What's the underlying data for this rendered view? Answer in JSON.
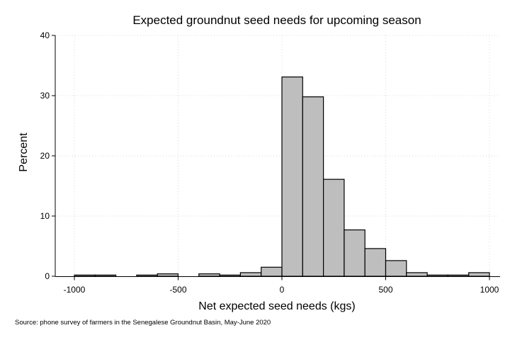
{
  "chart_data": {
    "type": "bar",
    "title": "Expected groundnut seed needs for upcoming season",
    "xlabel": "Net expected seed needs (kgs)",
    "ylabel": "Percent",
    "note": "Source: phone survey of farmers in the Senegalese Groundnut Basin, May-June 2020",
    "xlim": [
      -1000,
      1000
    ],
    "ylim": [
      0,
      40
    ],
    "xticks": [
      -1000,
      -500,
      0,
      500,
      1000
    ],
    "yticks": [
      0,
      10,
      20,
      30,
      40
    ],
    "grid": true,
    "bin_width": 100,
    "bins": [
      {
        "x0": -1000,
        "x1": -900,
        "value": 0.2
      },
      {
        "x0": -900,
        "x1": -800,
        "value": 0.2
      },
      {
        "x0": -700,
        "x1": -600,
        "value": 0.2
      },
      {
        "x0": -600,
        "x1": -500,
        "value": 0.4
      },
      {
        "x0": -400,
        "x1": -300,
        "value": 0.4
      },
      {
        "x0": -300,
        "x1": -200,
        "value": 0.2
      },
      {
        "x0": -200,
        "x1": -100,
        "value": 0.6
      },
      {
        "x0": -100,
        "x1": 0,
        "value": 1.5
      },
      {
        "x0": 0,
        "x1": 100,
        "value": 33.1
      },
      {
        "x0": 100,
        "x1": 200,
        "value": 29.8
      },
      {
        "x0": 200,
        "x1": 300,
        "value": 16.1
      },
      {
        "x0": 300,
        "x1": 400,
        "value": 7.7
      },
      {
        "x0": 400,
        "x1": 500,
        "value": 4.6
      },
      {
        "x0": 500,
        "x1": 600,
        "value": 2.6
      },
      {
        "x0": 600,
        "x1": 700,
        "value": 0.6
      },
      {
        "x0": 700,
        "x1": 800,
        "value": 0.2
      },
      {
        "x0": 800,
        "x1": 900,
        "value": 0.2
      },
      {
        "x0": 900,
        "x1": 1000,
        "value": 0.6
      }
    ],
    "bar_color": "#bebebe",
    "bar_edge_color": "#000000",
    "grid_color": "#d9d9d9"
  }
}
